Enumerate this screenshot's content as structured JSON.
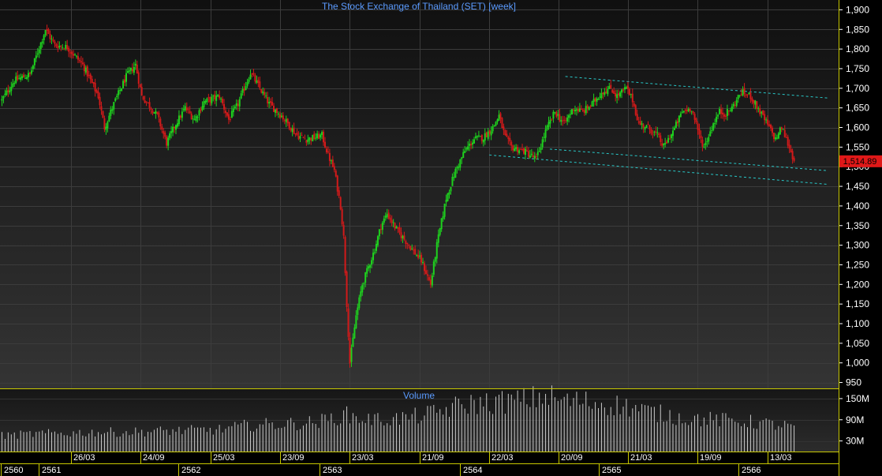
{
  "chart_data": {
    "type": "candlestick",
    "title": "The Stock Exchange of Thailand (SET) [week]",
    "price_axis": {
      "ylim": [
        935,
        1925
      ],
      "ticks": [
        950,
        1000,
        1050,
        1100,
        1150,
        1200,
        1250,
        1300,
        1350,
        1400,
        1450,
        1500,
        1550,
        1600,
        1650,
        1700,
        1750,
        1800,
        1850,
        1900
      ],
      "tick_labels": [
        "950",
        "1,000",
        "1,050",
        "1,100",
        "1,150",
        "1,200",
        "1,250",
        "1,300",
        "1,350",
        "1,400",
        "1,450",
        "1,500",
        "1,550",
        "1,600",
        "1,650",
        "1,700",
        "1,750",
        "1,800",
        "1,850",
        "1,900"
      ],
      "last_price_label": "1,514.89",
      "last_price": 1514.89
    },
    "volume_axis": {
      "label": "Volume",
      "ylim": [
        0,
        170
      ],
      "ticks": [
        30,
        90,
        150
      ],
      "tick_labels": [
        "30M",
        "90M",
        "150M"
      ]
    },
    "date_labels": [
      "26/03",
      "24/09",
      "25/03",
      "23/09",
      "23/03",
      "21/09",
      "22/03",
      "20/09",
      "21/03",
      "19/09",
      "13/03"
    ],
    "year_labels": [
      "2560",
      "2561",
      "2562",
      "2563",
      "2564",
      "2565",
      "2566"
    ],
    "grid": true,
    "price_path": [
      [
        0,
        1670
      ],
      [
        8,
        1720
      ],
      [
        18,
        1735
      ],
      [
        28,
        1850
      ],
      [
        34,
        1810
      ],
      [
        42,
        1805
      ],
      [
        52,
        1760
      ],
      [
        62,
        1680
      ],
      [
        66,
        1600
      ],
      [
        72,
        1660
      ],
      [
        80,
        1730
      ],
      [
        86,
        1760
      ],
      [
        90,
        1680
      ],
      [
        100,
        1630
      ],
      [
        106,
        1560
      ],
      [
        112,
        1610
      ],
      [
        118,
        1650
      ],
      [
        124,
        1620
      ],
      [
        130,
        1665
      ],
      [
        140,
        1680
      ],
      [
        146,
        1620
      ],
      [
        152,
        1660
      ],
      [
        160,
        1740
      ],
      [
        166,
        1700
      ],
      [
        172,
        1660
      ],
      [
        180,
        1630
      ],
      [
        186,
        1600
      ],
      [
        190,
        1580
      ],
      [
        196,
        1570
      ],
      [
        202,
        1575
      ],
      [
        206,
        1580
      ],
      [
        210,
        1530
      ],
      [
        214,
        1490
      ],
      [
        218,
        1400
      ],
      [
        220,
        1320
      ],
      [
        222,
        1150
      ],
      [
        224,
        1000
      ],
      [
        228,
        1120
      ],
      [
        232,
        1200
      ],
      [
        240,
        1290
      ],
      [
        244,
        1350
      ],
      [
        248,
        1380
      ],
      [
        254,
        1340
      ],
      [
        262,
        1300
      ],
      [
        270,
        1260
      ],
      [
        276,
        1200
      ],
      [
        280,
        1300
      ],
      [
        286,
        1420
      ],
      [
        292,
        1490
      ],
      [
        298,
        1540
      ],
      [
        304,
        1570
      ],
      [
        310,
        1575
      ],
      [
        316,
        1600
      ],
      [
        320,
        1630
      ],
      [
        324,
        1575
      ],
      [
        328,
        1550
      ],
      [
        336,
        1540
      ],
      [
        344,
        1520
      ],
      [
        350,
        1590
      ],
      [
        356,
        1640
      ],
      [
        362,
        1610
      ],
      [
        368,
        1650
      ],
      [
        374,
        1640
      ],
      [
        380,
        1660
      ],
      [
        386,
        1690
      ],
      [
        392,
        1700
      ],
      [
        396,
        1680
      ],
      [
        402,
        1700
      ],
      [
        406,
        1670
      ],
      [
        410,
        1610
      ],
      [
        416,
        1600
      ],
      [
        422,
        1580
      ],
      [
        426,
        1550
      ],
      [
        432,
        1590
      ],
      [
        438,
        1640
      ],
      [
        444,
        1650
      ],
      [
        448,
        1590
      ],
      [
        452,
        1550
      ],
      [
        458,
        1610
      ],
      [
        462,
        1640
      ],
      [
        466,
        1635
      ],
      [
        470,
        1650
      ],
      [
        476,
        1690
      ],
      [
        482,
        1680
      ],
      [
        488,
        1640
      ],
      [
        494,
        1600
      ],
      [
        498,
        1570
      ],
      [
        502,
        1600
      ],
      [
        506,
        1560
      ],
      [
        510,
        1515
      ]
    ],
    "volume_path": [
      [
        0,
        45
      ],
      [
        20,
        50
      ],
      [
        40,
        52
      ],
      [
        60,
        55
      ],
      [
        80,
        55
      ],
      [
        100,
        58
      ],
      [
        120,
        60
      ],
      [
        140,
        62
      ],
      [
        160,
        75
      ],
      [
        180,
        78
      ],
      [
        200,
        82
      ],
      [
        210,
        90
      ],
      [
        220,
        105
      ],
      [
        230,
        95
      ],
      [
        240,
        90
      ],
      [
        260,
        95
      ],
      [
        280,
        110
      ],
      [
        290,
        125
      ],
      [
        300,
        135
      ],
      [
        320,
        140
      ],
      [
        340,
        148
      ],
      [
        350,
        160
      ],
      [
        360,
        145
      ],
      [
        380,
        140
      ],
      [
        400,
        130
      ],
      [
        420,
        110
      ],
      [
        440,
        95
      ],
      [
        460,
        90
      ],
      [
        480,
        85
      ],
      [
        500,
        75
      ],
      [
        510,
        70
      ]
    ],
    "trendlines": [
      {
        "from": [
          363,
          1730
        ],
        "to": [
          532,
          1675
        ]
      },
      {
        "from": [
          353,
          1545
        ],
        "to": [
          532,
          1490
        ]
      },
      {
        "from": [
          314,
          1530
        ],
        "to": [
          532,
          1455
        ]
      }
    ]
  },
  "colors": {
    "up": "#1ed21e",
    "down": "#d21a1a",
    "title": "#5b9bff",
    "volume": "#c8c8c8",
    "trendline": "#28c8c8",
    "last_price_bg": "#e01818",
    "panel_border": "#c8c800",
    "grid": "#3c3c3c",
    "axis_text": "#ffffff"
  }
}
